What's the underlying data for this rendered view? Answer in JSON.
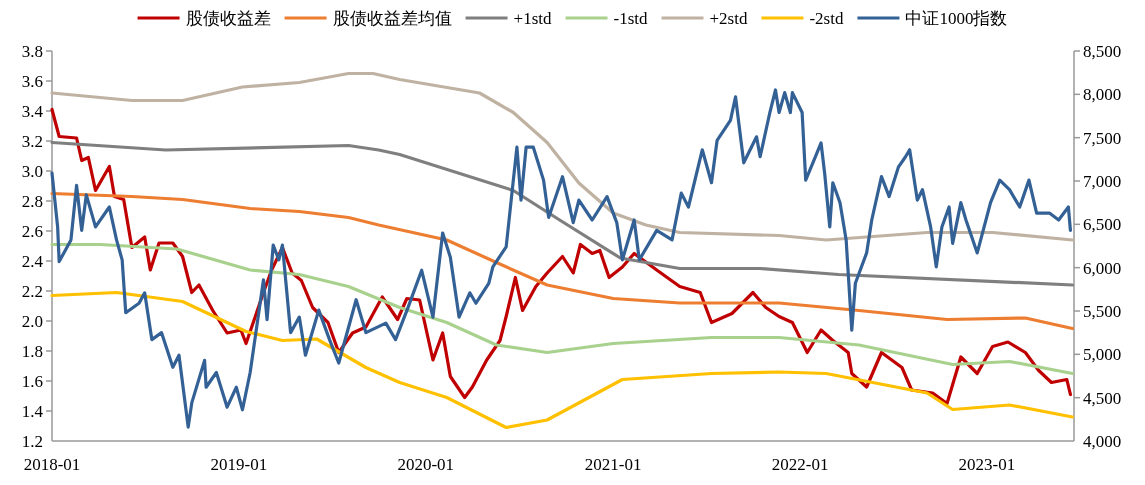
{
  "chart_data": {
    "type": "line",
    "legend": "top",
    "grid": false,
    "marker": "none",
    "line_style": "solid",
    "xlim": [
      "2018-01-01",
      "2023-06-20"
    ],
    "xticks": [
      "2018-01",
      "2019-01",
      "2020-01",
      "2021-01",
      "2022-01",
      "2023-01"
    ],
    "ylim": [
      1.2,
      3.8
    ],
    "yticks": [
      {
        "value": 1.2,
        "label": "1.2"
      },
      {
        "value": 1.4,
        "label": "1.4"
      },
      {
        "value": 1.6,
        "label": "1.6"
      },
      {
        "value": 1.8,
        "label": "1.8"
      },
      {
        "value": 2.0,
        "label": "2.0"
      },
      {
        "value": 2.2,
        "label": "2.2"
      },
      {
        "value": 2.4,
        "label": "2.4"
      },
      {
        "value": 2.6,
        "label": "2.6"
      },
      {
        "value": 2.8,
        "label": "2.8"
      },
      {
        "value": 3.0,
        "label": "3.0"
      },
      {
        "value": 3.2,
        "label": "3.2"
      },
      {
        "value": 3.4,
        "label": "3.4"
      },
      {
        "value": 3.6,
        "label": "3.6"
      },
      {
        "value": 3.8,
        "label": "3.8"
      }
    ],
    "y2lim": [
      4000,
      8500
    ],
    "y2ticks": [
      {
        "value": 4000,
        "label": "4,000"
      },
      {
        "value": 4500,
        "label": "4,500"
      },
      {
        "value": 5000,
        "label": "5,000"
      },
      {
        "value": 5500,
        "label": "5,500"
      },
      {
        "value": 6000,
        "label": "6,000"
      },
      {
        "value": 6500,
        "label": "6,500"
      },
      {
        "value": 7000,
        "label": "7,000"
      },
      {
        "value": 7500,
        "label": "7,500"
      },
      {
        "value": 8000,
        "label": "8,000"
      },
      {
        "value": 8500,
        "label": "8,500"
      }
    ],
    "series": [
      {
        "name": "股债收益差",
        "color": "#c00000",
        "x": [
          "2018-01-01",
          "2018-01-15",
          "2018-02-18",
          "2018-02-28",
          "2018-03-13",
          "2018-03-27",
          "2018-04-23",
          "2018-05-03",
          "2018-05-21",
          "2018-06-06",
          "2018-07-01",
          "2018-07-12",
          "2018-07-29",
          "2018-08-25",
          "2018-09-13",
          "2018-10-01",
          "2018-10-15",
          "2018-11-11",
          "2018-12-09",
          "2019-01-05",
          "2019-01-15",
          "2019-01-26",
          "2019-02-18",
          "2019-03-06",
          "2019-03-27",
          "2019-04-15",
          "2019-05-03",
          "2019-05-25",
          "2019-06-24",
          "2019-07-15",
          "2019-08-11",
          "2019-09-06",
          "2019-10-08",
          "2019-11-07",
          "2019-11-25",
          "2019-12-20",
          "2020-01-15",
          "2020-02-03",
          "2020-02-18",
          "2020-03-17",
          "2020-04-01",
          "2020-04-29",
          "2020-05-25",
          "2020-06-06",
          "2020-06-24",
          "2020-07-08",
          "2020-08-03",
          "2020-08-25",
          "2020-09-24",
          "2020-10-15",
          "2020-10-29",
          "2020-11-21",
          "2020-12-06",
          "2020-12-24",
          "2021-01-19",
          "2021-02-11",
          "2021-03-27",
          "2021-05-11",
          "2021-06-20",
          "2021-07-12",
          "2021-08-21",
          "2021-10-01",
          "2021-10-26",
          "2021-11-21",
          "2021-12-17",
          "2022-01-15",
          "2022-02-11",
          "2022-03-06",
          "2022-04-05",
          "2022-04-12",
          "2022-05-11",
          "2022-06-09",
          "2022-07-19",
          "2022-08-07",
          "2022-09-17",
          "2022-10-15",
          "2022-11-11",
          "2022-12-13",
          "2023-01-12",
          "2023-02-11",
          "2023-03-17",
          "2023-04-12",
          "2023-05-07",
          "2023-06-06",
          "2023-06-13"
        ],
        "values": [
          3.41,
          3.23,
          3.22,
          3.07,
          3.09,
          2.87,
          3.03,
          2.83,
          2.81,
          2.49,
          2.56,
          2.34,
          2.52,
          2.52,
          2.43,
          2.19,
          2.24,
          2.07,
          1.92,
          1.94,
          1.85,
          1.96,
          2.19,
          2.34,
          2.49,
          2.32,
          2.27,
          2.09,
          1.99,
          1.79,
          1.92,
          1.96,
          2.16,
          2.01,
          2.15,
          2.14,
          1.74,
          1.92,
          1.63,
          1.49,
          1.56,
          1.74,
          1.87,
          2.03,
          2.29,
          2.07,
          2.23,
          2.32,
          2.43,
          2.32,
          2.51,
          2.45,
          2.47,
          2.29,
          2.36,
          2.45,
          2.34,
          2.23,
          2.19,
          1.99,
          2.05,
          2.19,
          2.09,
          2.03,
          1.99,
          1.79,
          1.94,
          1.87,
          1.79,
          1.65,
          1.56,
          1.79,
          1.69,
          1.54,
          1.52,
          1.45,
          1.76,
          1.65,
          1.83,
          1.86,
          1.79,
          1.67,
          1.59,
          1.61,
          1.51
        ]
      },
      {
        "name": "股债收益差均值",
        "color": "#ed7d31",
        "x": [
          "2018-01-01",
          "2018-06-06",
          "2018-09-13",
          "2019-01-23",
          "2019-04-29",
          "2019-08-03",
          "2019-10-01",
          "2020-02-11",
          "2020-05-18",
          "2020-08-25",
          "2021-01-01",
          "2021-05-11",
          "2021-11-21",
          "2022-04-26",
          "2022-10-15",
          "2023-03-17",
          "2023-06-17"
        ],
        "values": [
          2.85,
          2.83,
          2.81,
          2.75,
          2.73,
          2.69,
          2.64,
          2.54,
          2.39,
          2.24,
          2.15,
          2.12,
          2.12,
          2.07,
          2.01,
          2.02,
          1.95
        ]
      },
      {
        "name": "+1std",
        "color": "#7f7f7f",
        "x": [
          "2018-01-01",
          "2018-08-11",
          "2019-08-03",
          "2019-10-01",
          "2019-11-11",
          "2020-06-20",
          "2020-09-20",
          "2021-01-15",
          "2021-05-11",
          "2021-10-15",
          "2022-03-17",
          "2023-06-17"
        ],
        "values": [
          3.19,
          3.14,
          3.17,
          3.14,
          3.11,
          2.87,
          2.67,
          2.42,
          2.35,
          2.35,
          2.31,
          2.24
        ]
      },
      {
        "name": "-1std",
        "color": "#a9d18e",
        "x": [
          "2018-01-01",
          "2018-04-05",
          "2018-09-02",
          "2019-01-23",
          "2019-04-29",
          "2019-08-03",
          "2019-11-11",
          "2020-02-11",
          "2020-05-18",
          "2020-08-25",
          "2021-01-01",
          "2021-07-12",
          "2021-11-21",
          "2022-04-26",
          "2022-10-26",
          "2023-02-14",
          "2023-06-17"
        ],
        "values": [
          2.51,
          2.51,
          2.48,
          2.34,
          2.31,
          2.23,
          2.09,
          1.99,
          1.84,
          1.79,
          1.85,
          1.89,
          1.89,
          1.84,
          1.71,
          1.73,
          1.65
        ]
      },
      {
        "name": "+2std",
        "color": "#c0b2a2",
        "x": [
          "2018-01-01",
          "2018-06-06",
          "2018-09-13",
          "2019-01-08",
          "2019-04-29",
          "2019-08-03",
          "2019-09-20",
          "2019-11-11",
          "2020-04-15",
          "2020-06-20",
          "2020-08-25",
          "2020-10-26",
          "2021-01-01",
          "2021-03-06",
          "2021-05-11",
          "2021-11-21",
          "2022-02-21",
          "2022-09-06",
          "2023-01-12",
          "2023-06-17"
        ],
        "values": [
          3.52,
          3.47,
          3.47,
          3.56,
          3.59,
          3.65,
          3.65,
          3.61,
          3.52,
          3.39,
          3.19,
          2.92,
          2.72,
          2.64,
          2.59,
          2.57,
          2.54,
          2.59,
          2.59,
          2.54
        ]
      },
      {
        "name": "-2std",
        "color": "#ffc000",
        "x": [
          "2018-01-01",
          "2018-05-07",
          "2018-09-13",
          "2019-01-15",
          "2019-03-27",
          "2019-06-02",
          "2019-09-06",
          "2019-11-11",
          "2020-02-11",
          "2020-06-06",
          "2020-08-25",
          "2021-01-19",
          "2021-07-12",
          "2021-11-21",
          "2022-02-21",
          "2022-09-06",
          "2022-10-26",
          "2023-02-14",
          "2023-06-17"
        ],
        "values": [
          2.17,
          2.19,
          2.13,
          1.93,
          1.87,
          1.88,
          1.69,
          1.59,
          1.49,
          1.29,
          1.34,
          1.61,
          1.65,
          1.66,
          1.65,
          1.52,
          1.41,
          1.44,
          1.36
        ]
      },
      {
        "name": "中证1000指数",
        "color": "#336195",
        "axis": "y2",
        "x": [
          "2018-01-01",
          "2018-01-12",
          "2018-01-15",
          "2018-02-07",
          "2018-02-18",
          "2018-02-28",
          "2018-03-09",
          "2018-03-27",
          "2018-04-23",
          "2018-05-07",
          "2018-05-18",
          "2018-05-25",
          "2018-06-20",
          "2018-07-01",
          "2018-07-15",
          "2018-08-03",
          "2018-08-25",
          "2018-09-06",
          "2018-09-24",
          "2018-10-01",
          "2018-10-26",
          "2018-10-29",
          "2018-11-18",
          "2018-12-09",
          "2018-12-27",
          "2019-01-08",
          "2019-01-23",
          "2019-02-18",
          "2019-02-25",
          "2019-03-09",
          "2019-03-20",
          "2019-03-27",
          "2019-04-12",
          "2019-04-29",
          "2019-05-11",
          "2019-06-06",
          "2019-06-27",
          "2019-07-15",
          "2019-08-18",
          "2019-09-06",
          "2019-10-15",
          "2019-11-03",
          "2019-11-28",
          "2019-12-24",
          "2020-01-15",
          "2020-02-03",
          "2020-02-18",
          "2020-03-06",
          "2020-03-27",
          "2020-04-08",
          "2020-05-03",
          "2020-05-11",
          "2020-06-06",
          "2020-06-20",
          "2020-06-27",
          "2020-07-05",
          "2020-07-15",
          "2020-07-29",
          "2020-08-18",
          "2020-08-28",
          "2020-09-24",
          "2020-10-15",
          "2020-10-26",
          "2020-11-21",
          "2020-12-20",
          "2021-01-08",
          "2021-01-19",
          "2021-02-11",
          "2021-02-21",
          "2021-03-27",
          "2021-04-26",
          "2021-05-14",
          "2021-05-28",
          "2021-06-24",
          "2021-07-12",
          "2021-07-23",
          "2021-08-18",
          "2021-08-28",
          "2021-09-13",
          "2021-10-08",
          "2021-10-15",
          "2021-11-03",
          "2021-11-14",
          "2021-11-21",
          "2021-12-02",
          "2021-12-13",
          "2021-12-17",
          "2022-01-05",
          "2022-01-12",
          "2022-01-26",
          "2022-02-11",
          "2022-02-18",
          "2022-02-28",
          "2022-03-06",
          "2022-03-20",
          "2022-04-01",
          "2022-04-12",
          "2022-04-19",
          "2022-05-11",
          "2022-05-21",
          "2022-06-09",
          "2022-06-24",
          "2022-07-12",
          "2022-07-26",
          "2022-08-03",
          "2022-08-18",
          "2022-08-28",
          "2022-09-13",
          "2022-09-24",
          "2022-10-05",
          "2022-10-19",
          "2022-10-26",
          "2022-11-11",
          "2022-11-21",
          "2022-12-13",
          "2023-01-08",
          "2023-01-26",
          "2023-02-14",
          "2023-03-06",
          "2023-03-24",
          "2023-04-08",
          "2023-05-03",
          "2023-05-21",
          "2023-06-09",
          "2023-06-13"
        ],
        "values": [
          7090,
          6470,
          6070,
          6320,
          6950,
          6430,
          6840,
          6470,
          6700,
          6320,
          6090,
          5480,
          5590,
          5710,
          5170,
          5250,
          4850,
          4990,
          4160,
          4440,
          4930,
          4620,
          4790,
          4390,
          4620,
          4360,
          4790,
          5860,
          5400,
          6260,
          6090,
          6260,
          5250,
          5430,
          4990,
          5510,
          5170,
          4900,
          5630,
          5250,
          5360,
          5170,
          5550,
          5970,
          5430,
          6400,
          6120,
          5430,
          5710,
          5590,
          5820,
          6010,
          6240,
          7010,
          7390,
          6780,
          7390,
          7390,
          7010,
          6580,
          7050,
          6520,
          6780,
          6550,
          6820,
          6520,
          6090,
          6550,
          6090,
          6430,
          6320,
          6860,
          6700,
          7360,
          6980,
          7470,
          7700,
          7970,
          7210,
          7510,
          7280,
          7790,
          8050,
          7790,
          8020,
          7790,
          8020,
          7790,
          7010,
          7210,
          7440,
          7090,
          6470,
          6980,
          6750,
          6320,
          5280,
          5820,
          6170,
          6550,
          7050,
          6820,
          7160,
          7280,
          7360,
          6780,
          6900,
          6470,
          6010,
          6470,
          6700,
          6280,
          6750,
          6550,
          6170,
          6750,
          7010,
          6900,
          6700,
          7010,
          6630,
          6630,
          6550,
          6700,
          6430
        ]
      }
    ]
  }
}
